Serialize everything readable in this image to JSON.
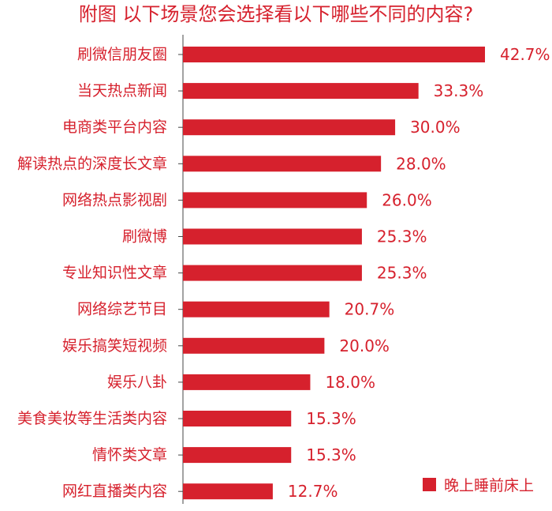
{
  "title": "附图  以下场景您会选择看以下哪些不同的内容?",
  "chart_data": {
    "type": "bar",
    "orientation": "horizontal",
    "title": "附图  以下场景您会选择看以下哪些不同的内容?",
    "categories": [
      "刷微信朋友圈",
      "当天热点新闻",
      "电商类平台内容",
      "解读热点的深度长文章",
      "网络热点影视剧",
      "刷微博",
      "专业知识性文章",
      "网络综艺节目",
      "娱乐搞笑短视频",
      "娱乐八卦",
      "美食美妆等生活类内容",
      "情怀类文章",
      "网红直播类内容"
    ],
    "series": [
      {
        "name": "晚上睡前床上",
        "values": [
          42.7,
          33.3,
          30.0,
          28.0,
          26.0,
          25.3,
          25.3,
          20.7,
          20.0,
          18.0,
          15.3,
          15.3,
          12.7
        ],
        "labels": [
          "42.7%",
          "33.3%",
          "30.0%",
          "28.0%",
          "26.0%",
          "25.3%",
          "25.3%",
          "20.7%",
          "20.0%",
          "18.0%",
          "15.3%",
          "15.3%",
          "12.7%"
        ]
      }
    ],
    "unit": "%",
    "xlim": [
      0,
      42.7
    ],
    "grid": false,
    "legend_position": "bottom-right",
    "colors": {
      "bar": "#d6212d",
      "text": "#d6212d",
      "axis": "#444444"
    }
  },
  "legend": {
    "label": "晚上睡前床上",
    "color": "#d6212d"
  }
}
